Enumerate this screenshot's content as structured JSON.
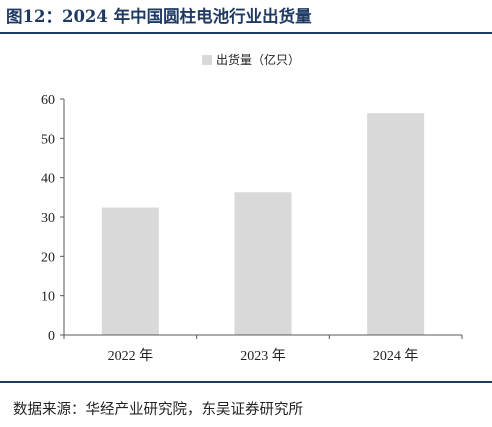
{
  "figure": {
    "title": "图12：2024 年中国圆柱电池行业出货量",
    "source": "数据来源：华经产业研究院，东吴证券研究所"
  },
  "chart_data": {
    "type": "bar",
    "categories": [
      "2022 年",
      "2023 年",
      "2024 年"
    ],
    "series": [
      {
        "name": "出货量（亿只）",
        "values": [
          32.4,
          36.3,
          56.4
        ]
      }
    ],
    "ylim": [
      0,
      60
    ],
    "yticks": [
      0,
      10,
      20,
      30,
      40,
      50,
      60
    ],
    "xlabel": "",
    "ylabel": "",
    "grid": false,
    "legend_position": "top-center",
    "colors": {
      "bar": "#d9d9d9",
      "axis": "#595959",
      "title": "#1e3a63"
    }
  }
}
